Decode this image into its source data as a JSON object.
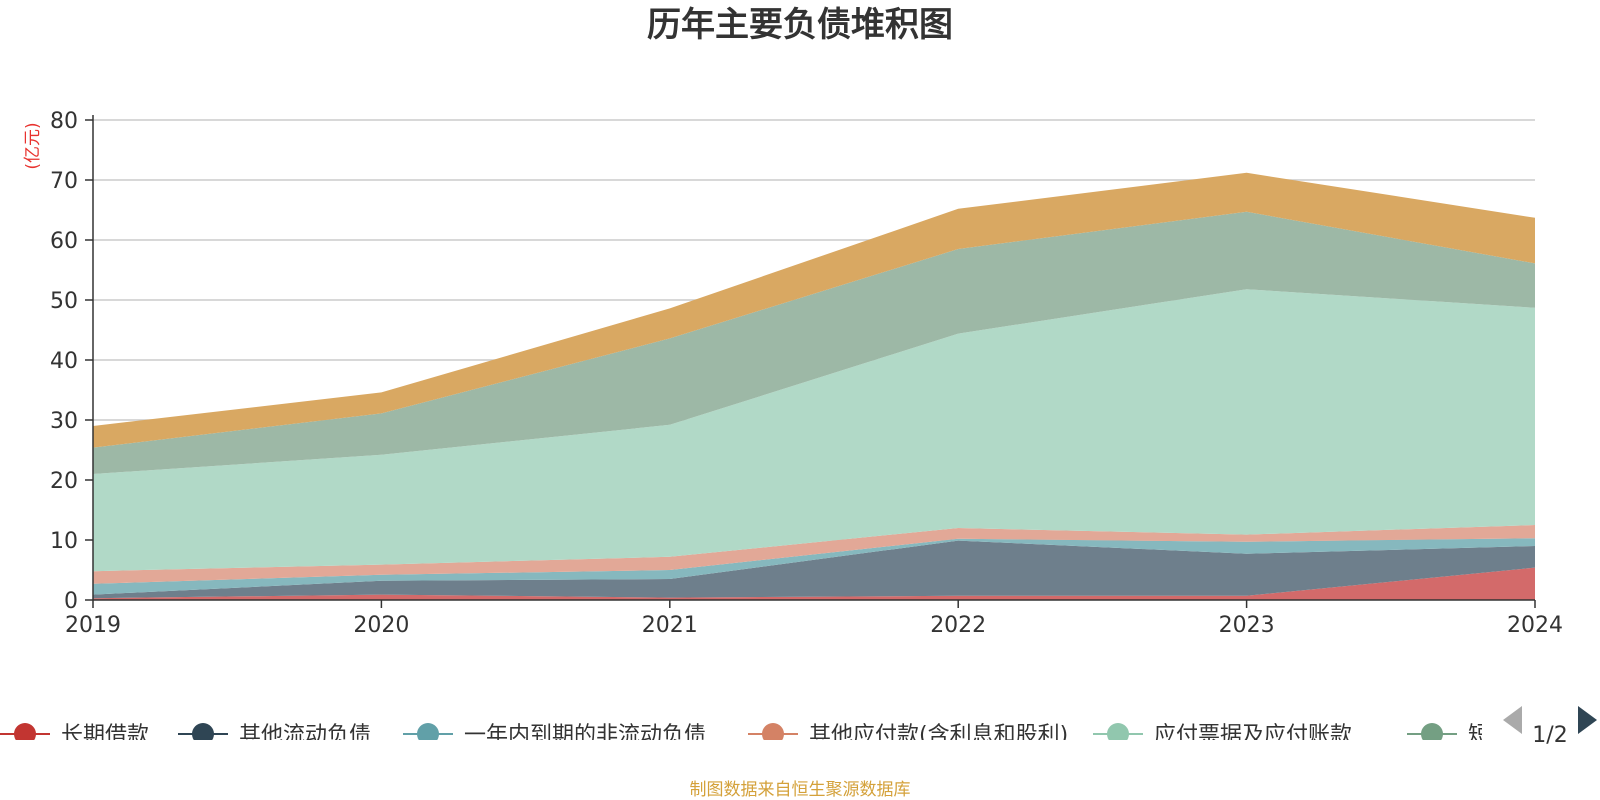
{
  "chart_data": {
    "type": "area",
    "title": "历年主要负债堆积图",
    "unit_label": "(亿元)",
    "x": [
      "2019",
      "2020",
      "2021",
      "2022",
      "2023",
      "2024"
    ],
    "ylim": [
      0,
      80
    ],
    "y_ticks": [
      "0",
      "10",
      "20",
      "30",
      "40",
      "50",
      "60",
      "70",
      "80"
    ],
    "grid": true,
    "stacked": true,
    "series": [
      {
        "name": "长期借款",
        "color": "#c23531",
        "fill": "#d36a6a",
        "values": [
          0.3,
          0.9,
          0.4,
          0.7,
          0.7,
          5.4
        ]
      },
      {
        "name": "其他流动负债",
        "color": "#2f4554",
        "fill": "#6e7f8c",
        "values": [
          0.6,
          2.3,
          3.1,
          9.2,
          7.0,
          3.6
        ]
      },
      {
        "name": "一年内到期的非流动负债",
        "color": "#61a0a8",
        "fill": "#86b8be",
        "values": [
          1.8,
          1.0,
          1.5,
          0.3,
          2.0,
          1.3
        ]
      },
      {
        "name": "其他应付款(含利息和股利)",
        "color": "#d48265",
        "fill": "#e2a897",
        "values": [
          2.1,
          1.7,
          2.2,
          1.8,
          1.2,
          2.2
        ]
      },
      {
        "name": "应付票据及应付账款",
        "color": "#91c7ae",
        "fill": "#b1d9c7",
        "values": [
          16.2,
          18.3,
          22.0,
          32.4,
          40.9,
          36.2
        ]
      },
      {
        "name": "短期借款",
        "color": "#749f83",
        "fill": "#9db8a6",
        "values": [
          4.4,
          6.9,
          14.4,
          14.1,
          12.9,
          7.4
        ]
      },
      {
        "name": "",
        "color": "#ca8622",
        "fill": "#d9a862",
        "values": [
          3.6,
          3.5,
          5.0,
          6.7,
          6.5,
          7.6
        ]
      }
    ],
    "legend": {
      "position": "bottom",
      "visible_items": [
        "长期借款",
        "其他流动负债",
        "一年内到期的非流动负债",
        "其他应付款(含利息和股利)",
        "应付票据及应付账款",
        "短"
      ],
      "page": "1/2"
    }
  },
  "source_note": "制图数据来自恒生聚源数据库",
  "colors": {
    "unit_label": "#e8322e",
    "source_note": "#d4a13a",
    "grid": "#cccccc",
    "axis": "#333333",
    "pager_inactive": "#aaaaaa",
    "pager_active": "#2f4554"
  }
}
